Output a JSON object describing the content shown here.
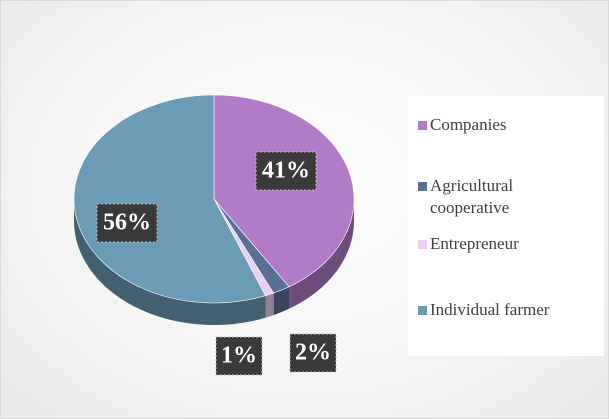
{
  "chart_data": {
    "type": "pie",
    "categories": [
      "Companies",
      "Agricultural cooperative",
      "Entrepreneur",
      "Individual farmer"
    ],
    "values": [
      41,
      2,
      1,
      56
    ],
    "value_labels": [
      "41%",
      "2%",
      "1%",
      "56%"
    ],
    "colors": [
      "#b07cc8",
      "#5a6f94",
      "#ead0f0",
      "#6b9bb5"
    ],
    "legend": "right"
  }
}
